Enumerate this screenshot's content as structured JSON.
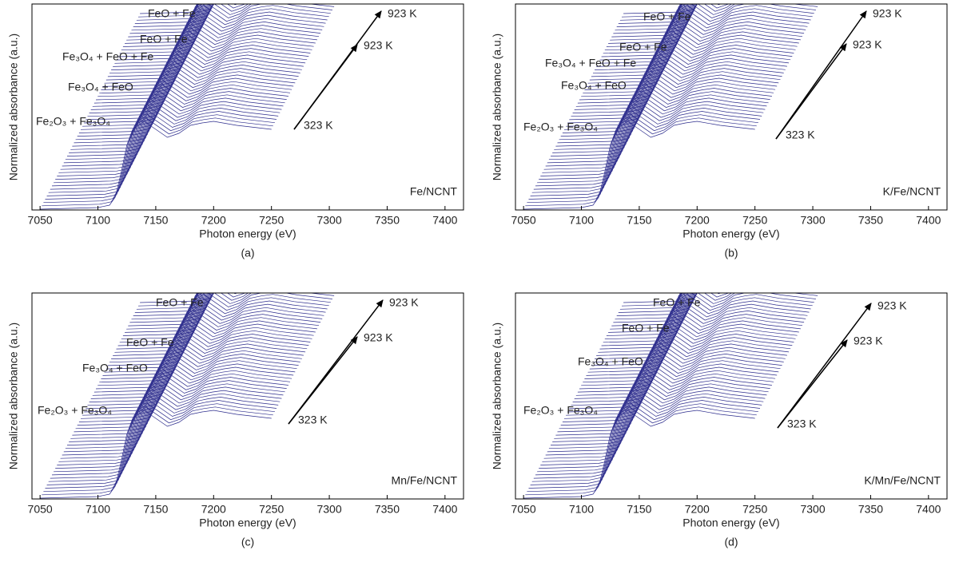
{
  "chart_data": [
    {
      "type": "waterfall",
      "caption": "(a)",
      "sample": "Fe/NCNT",
      "xlabel": "Photon energy (eV)",
      "ylabel": "Normalized absorbance (a.u.)",
      "xlim": [
        7043,
        7416
      ],
      "xticks": [
        7050,
        7100,
        7150,
        7200,
        7250,
        7300,
        7350,
        7400
      ],
      "annotations": [
        "FeO + Fe",
        "FeO + Fe",
        "Fe₃O₄ + FeO + Fe",
        "Fe₃O₄ + FeO",
        "Fe₂O₃ + Fe₃O₄"
      ],
      "temperatures": [
        "923 K",
        "923 K",
        "323 K"
      ],
      "color": "#2b2b8c",
      "x": [
        7050,
        7100,
        7110,
        7115,
        7120,
        7125,
        7130,
        7135,
        7140,
        7150,
        7160,
        7170,
        7180,
        7190,
        7200,
        7220,
        7250
      ],
      "values": [
        0,
        0.02,
        0.05,
        0.15,
        0.45,
        0.8,
        1.0,
        1.05,
        1.1,
        1.0,
        0.9,
        0.95,
        1.05,
        1.08,
        1.1,
        1.05,
        1.0
      ]
    },
    {
      "type": "waterfall",
      "caption": "(b)",
      "sample": "K/Fe/NCNT",
      "xlabel": "Photon energy (eV)",
      "ylabel": "Normalized absorbance (a.u.)",
      "xlim": [
        7043,
        7416
      ],
      "xticks": [
        7050,
        7100,
        7150,
        7200,
        7250,
        7300,
        7350,
        7400
      ],
      "annotations": [
        "FeO + Fe",
        "FeO + Fe",
        "Fe₃O₄ + FeO + Fe",
        "Fe₃O₄ + FeO",
        "Fe₂O₃ + Fe₃O₄"
      ],
      "temperatures": [
        "923 K",
        "923 K",
        "323 K"
      ],
      "color": "#2b2b8c",
      "x": [
        7050,
        7100,
        7110,
        7115,
        7120,
        7125,
        7130,
        7135,
        7140,
        7150,
        7160,
        7170,
        7180,
        7190,
        7200,
        7220,
        7250
      ],
      "values": [
        0,
        0.02,
        0.05,
        0.15,
        0.45,
        0.8,
        1.0,
        1.05,
        1.1,
        1.0,
        0.9,
        0.95,
        1.05,
        1.08,
        1.1,
        1.05,
        1.0
      ]
    },
    {
      "type": "waterfall",
      "caption": "(c)",
      "sample": "Mn/Fe/NCNT",
      "xlabel": "Photon energy (eV)",
      "ylabel": "Normalized absorbance (a.u.)",
      "xlim": [
        7043,
        7416
      ],
      "xticks": [
        7050,
        7100,
        7150,
        7200,
        7250,
        7300,
        7350,
        7400
      ],
      "annotations": [
        "FeO + Fe",
        "FeO + Fe",
        "Fe₃O₄ + FeO",
        "Fe₂O₃ + Fe₃O₄"
      ],
      "temperatures": [
        "923 K",
        "923 K",
        "323 K"
      ],
      "color": "#2b2b8c",
      "x": [
        7050,
        7100,
        7110,
        7115,
        7120,
        7125,
        7130,
        7135,
        7140,
        7150,
        7160,
        7170,
        7180,
        7190,
        7200,
        7220,
        7250
      ],
      "values": [
        0,
        0.02,
        0.05,
        0.15,
        0.45,
        0.8,
        1.0,
        1.05,
        1.1,
        1.0,
        0.9,
        0.95,
        1.05,
        1.08,
        1.1,
        1.05,
        1.0
      ]
    },
    {
      "type": "waterfall",
      "caption": "(d)",
      "sample": "K/Mn/Fe/NCNT",
      "xlabel": "Photon energy (eV)",
      "ylabel": "Normalized absorbance (a.u.)",
      "xlim": [
        7043,
        7416
      ],
      "xticks": [
        7050,
        7100,
        7150,
        7200,
        7250,
        7300,
        7350,
        7400
      ],
      "annotations": [
        "FeO + Fe",
        "FeO + Fe",
        "Fe₃O₄ + FeO",
        "Fe₂O₃ + Fe₃O₄"
      ],
      "temperatures": [
        "923 K",
        "923 K",
        "323 K"
      ],
      "color": "#2b2b8c",
      "x": [
        7050,
        7100,
        7110,
        7115,
        7120,
        7125,
        7130,
        7135,
        7140,
        7150,
        7160,
        7170,
        7180,
        7190,
        7200,
        7220,
        7250
      ],
      "values": [
        0,
        0.02,
        0.05,
        0.15,
        0.45,
        0.8,
        1.0,
        1.05,
        1.1,
        1.0,
        0.9,
        0.95,
        1.05,
        1.08,
        1.1,
        1.05,
        1.0
      ]
    }
  ]
}
